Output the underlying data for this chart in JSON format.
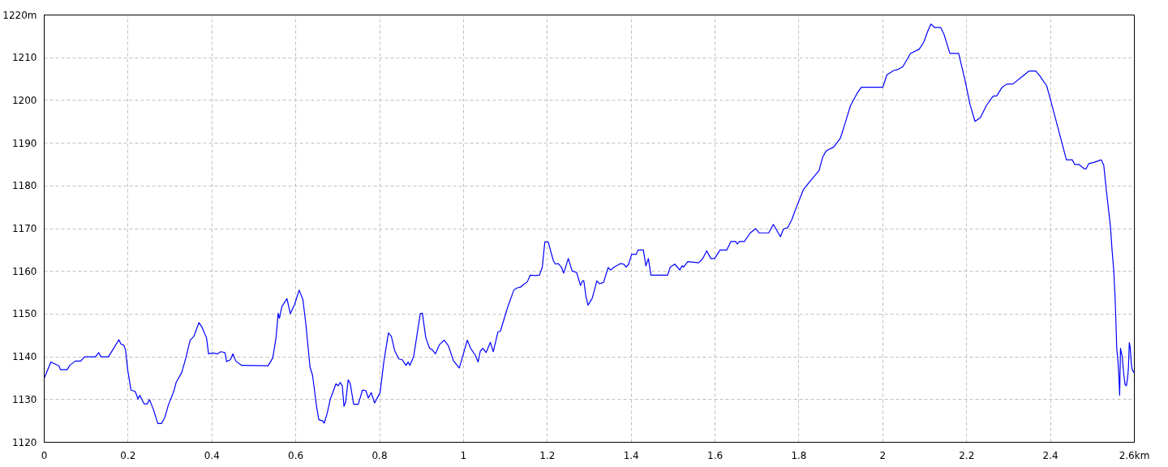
{
  "chart_data": {
    "type": "line",
    "x": [
      0,
      0.016,
      0.035,
      0.039,
      0.055,
      0.061,
      0.074,
      0.087,
      0.096,
      0.122,
      0.13,
      0.135,
      0.153,
      0.164,
      0.178,
      0.183,
      0.19,
      0.194,
      0.199,
      0.207,
      0.217,
      0.224,
      0.228,
      0.238,
      0.246,
      0.251,
      0.26,
      0.271,
      0.28,
      0.288,
      0.296,
      0.309,
      0.315,
      0.328,
      0.338,
      0.348,
      0.357,
      0.369,
      0.376,
      0.387,
      0.392,
      0.402,
      0.413,
      0.421,
      0.431,
      0.435,
      0.444,
      0.45,
      0.457,
      0.471,
      0.534,
      0.545,
      0.553,
      0.558,
      0.561,
      0.567,
      0.579,
      0.587,
      0.597,
      0.608,
      0.617,
      0.624,
      0.634,
      0.64,
      0.65,
      0.655,
      0.664,
      0.668,
      0.675,
      0.682,
      0.696,
      0.701,
      0.706,
      0.711,
      0.715,
      0.719,
      0.725,
      0.73,
      0.738,
      0.749,
      0.759,
      0.767,
      0.773,
      0.78,
      0.788,
      0.801,
      0.81,
      0.821,
      0.828,
      0.836,
      0.846,
      0.854,
      0.863,
      0.868,
      0.872,
      0.881,
      0.897,
      0.902,
      0.91,
      0.919,
      0.925,
      0.933,
      0.943,
      0.954,
      0.964,
      0.976,
      0.99,
      0.998,
      1.009,
      1.017,
      1.028,
      1.035,
      1.04,
      1.046,
      1.054,
      1.064,
      1.071,
      1.082,
      1.088,
      1.105,
      1.12,
      1.127,
      1.136,
      1.143,
      1.152,
      1.159,
      1.172,
      1.181,
      1.188,
      1.194,
      1.202,
      1.214,
      1.219,
      1.226,
      1.234,
      1.239,
      1.25,
      1.259,
      1.27,
      1.279,
      1.284,
      1.287,
      1.292,
      1.297,
      1.307,
      1.318,
      1.324,
      1.334,
      1.345,
      1.351,
      1.359,
      1.374,
      1.382,
      1.388,
      1.394,
      1.401,
      1.412,
      1.416,
      1.429,
      1.435,
      1.441,
      1.447,
      1.487,
      1.493,
      1.504,
      1.516,
      1.521,
      1.525,
      1.535,
      1.561,
      1.57,
      1.58,
      1.59,
      1.599,
      1.612,
      1.628,
      1.638,
      1.649,
      1.653,
      1.658,
      1.67,
      1.684,
      1.697,
      1.705,
      1.728,
      1.739,
      1.756,
      1.763,
      1.773,
      1.783,
      1.792,
      1.811,
      1.821,
      1.837,
      1.848,
      1.857,
      1.865,
      1.883,
      1.899,
      1.91,
      1.923,
      1.939,
      1.949,
      2.0,
      2.01,
      2.026,
      2.035,
      2.048,
      2.066,
      2.087,
      2.098,
      2.108,
      2.115,
      2.123,
      2.138,
      2.146,
      2.16,
      2.181,
      2.196,
      2.208,
      2.22,
      2.233,
      2.247,
      2.263,
      2.272,
      2.284,
      2.295,
      2.311,
      2.33,
      2.349,
      2.365,
      2.375,
      2.391,
      2.397,
      2.42,
      2.438,
      2.452,
      2.458,
      2.468,
      2.481,
      2.485,
      2.491,
      2.503,
      2.521,
      2.527,
      2.532,
      2.543,
      2.547,
      2.551,
      2.554,
      2.556,
      2.558,
      2.561,
      2.563,
      2.565,
      2.567,
      2.571,
      2.575,
      2.578,
      2.581,
      2.584,
      2.586,
      2.588,
      2.59,
      2.593,
      2.595,
      2.6
    ],
    "series": [
      {
        "color": "#0000ff",
        "values": [
          1135,
          1138.8,
          1137.9,
          1137,
          1137,
          1138,
          1139,
          1139,
          1140,
          1140,
          1141,
          1140,
          1140,
          1141.7,
          1144,
          1143,
          1142.7,
          1141.6,
          1137,
          1132.2,
          1131.9,
          1130.1,
          1131,
          1129,
          1129,
          1130,
          1127.8,
          1124.4,
          1124.4,
          1125.9,
          1128.7,
          1131.9,
          1134.1,
          1136.3,
          1139.8,
          1143.9,
          1144.8,
          1148,
          1147,
          1144.5,
          1140.7,
          1140.9,
          1140.7,
          1141.2,
          1141,
          1138.9,
          1139.3,
          1140.7,
          1139,
          1138,
          1137.9,
          1139.7,
          1144.5,
          1150.2,
          1149,
          1151.8,
          1153.6,
          1150.1,
          1152.2,
          1155.6,
          1153.4,
          1147.7,
          1137.6,
          1135.7,
          1128.1,
          1125.3,
          1125,
          1124.5,
          1126.8,
          1130,
          1133.7,
          1133.2,
          1134,
          1133.2,
          1128.4,
          1129.4,
          1134.6,
          1133.7,
          1128.9,
          1128.9,
          1132.2,
          1132.1,
          1130.4,
          1131.6,
          1129.2,
          1131.6,
          1138.8,
          1145.6,
          1144.8,
          1141.4,
          1139.5,
          1139.3,
          1138,
          1138.8,
          1138,
          1140,
          1150.1,
          1150.2,
          1144.5,
          1142,
          1141.7,
          1140.7,
          1142.9,
          1143.9,
          1142.6,
          1139.1,
          1137.4,
          1140.1,
          1143.9,
          1142,
          1140.4,
          1138.8,
          1141.3,
          1142,
          1141,
          1143.4,
          1141.2,
          1145.8,
          1146,
          1151.5,
          1155.6,
          1156.1,
          1156.3,
          1156.9,
          1157.5,
          1159.1,
          1159,
          1159.1,
          1161,
          1166.9,
          1166.9,
          1162.6,
          1161.7,
          1161.8,
          1160.9,
          1159.6,
          1163,
          1160.1,
          1159.7,
          1156.7,
          1157.8,
          1157.8,
          1154.2,
          1152.1,
          1153.7,
          1157.8,
          1157.1,
          1157.4,
          1160.9,
          1160.3,
          1161,
          1161.8,
          1161.7,
          1161,
          1161.7,
          1164,
          1164,
          1165,
          1165,
          1161.3,
          1163,
          1159.1,
          1159.1,
          1161,
          1161.7,
          1160.3,
          1161.3,
          1161,
          1162.3,
          1162,
          1162.9,
          1164.8,
          1163,
          1163,
          1165,
          1165,
          1167,
          1167,
          1166.4,
          1167,
          1167,
          1169,
          1170,
          1169,
          1169,
          1171,
          1168.1,
          1169.9,
          1170.2,
          1172.1,
          1174.5,
          1179.2,
          1180.4,
          1182.3,
          1183.6,
          1186.8,
          1188.2,
          1189.1,
          1191.2,
          1194.6,
          1198.8,
          1201.7,
          1203.1,
          1203.1,
          1206,
          1207,
          1207.2,
          1207.9,
          1211,
          1212,
          1213.7,
          1216.4,
          1217.9,
          1217.1,
          1217.1,
          1215.5,
          1211,
          1211,
          1204.8,
          1199.1,
          1195.1,
          1196,
          1198.8,
          1201,
          1201.1,
          1203,
          1203.8,
          1203.9,
          1205.4,
          1206.9,
          1206.9,
          1205.7,
          1203.4,
          1201.3,
          1192.8,
          1186.1,
          1186.1,
          1185,
          1185,
          1184,
          1184,
          1185.2,
          1185.5,
          1186.1,
          1184.9,
          1180.1,
          1170.5,
          1164.8,
          1160.1,
          1154,
          1148.4,
          1142,
          1138.9,
          1135.7,
          1131,
          1142,
          1140.1,
          1135.7,
          1133.5,
          1133.2,
          1135.1,
          1137.6,
          1143.3,
          1142.3,
          1138.2,
          1137,
          1136.2
        ]
      }
    ],
    "xlim": [
      0,
      2.6
    ],
    "ylim": [
      1120,
      1220
    ],
    "xticks": [
      0,
      0.2,
      0.4,
      0.6,
      0.8,
      1,
      1.2,
      1.4,
      1.6,
      1.8,
      2,
      2.2,
      2.4,
      {
        "value": 2.6,
        "label": "2.6km"
      }
    ],
    "yticks": [
      1120,
      1130,
      1140,
      1150,
      1160,
      1170,
      1180,
      1190,
      1200,
      1210,
      {
        "value": 1220,
        "label": "1220m"
      }
    ],
    "grid": true
  }
}
